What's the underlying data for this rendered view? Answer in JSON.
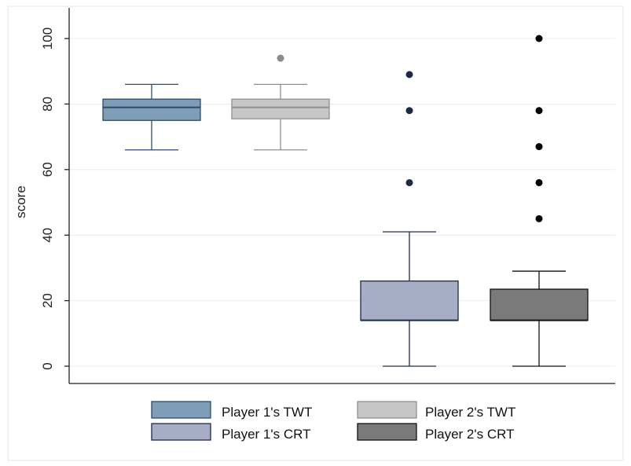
{
  "chart_data": {
    "type": "box",
    "ylabel": "score",
    "xlabel": "",
    "title": "",
    "ylim": [
      -5,
      107
    ],
    "yticks": [
      0,
      20,
      40,
      60,
      80,
      100
    ],
    "grid": true,
    "legend_position": "bottom",
    "series": [
      {
        "name": "Player 1's TWT",
        "color": "#7f9db6",
        "stroke": "#2e4a6b",
        "whisker_low": 66,
        "q1": 75,
        "median": 79,
        "q3": 81.5,
        "whisker_high": 86,
        "outliers": [],
        "outlier_color": "#2e4a6b"
      },
      {
        "name": "Player 2's TWT",
        "color": "#c6c6c6",
        "stroke": "#8f8f8f",
        "whisker_low": 66,
        "q1": 75.5,
        "median": 79,
        "q3": 81.5,
        "whisker_high": 86,
        "outliers": [
          94
        ],
        "outlier_color": "#8a8a8a"
      },
      {
        "name": "Player 1's CRT",
        "color": "#a6adc5",
        "stroke": "#1c2a4a",
        "whisker_low": 0,
        "q1": 14,
        "median": 14,
        "q3": 26,
        "whisker_high": 41,
        "outliers": [
          89,
          78,
          56
        ],
        "outlier_color": "#1c2a4a"
      },
      {
        "name": "Player 2's CRT",
        "color": "#7a7a7a",
        "stroke": "#111111",
        "whisker_low": 0,
        "q1": 14,
        "median": 14,
        "q3": 23.5,
        "whisker_high": 29,
        "outliers": [
          100,
          78,
          67,
          56,
          45
        ],
        "outlier_color": "#000000"
      }
    ]
  }
}
